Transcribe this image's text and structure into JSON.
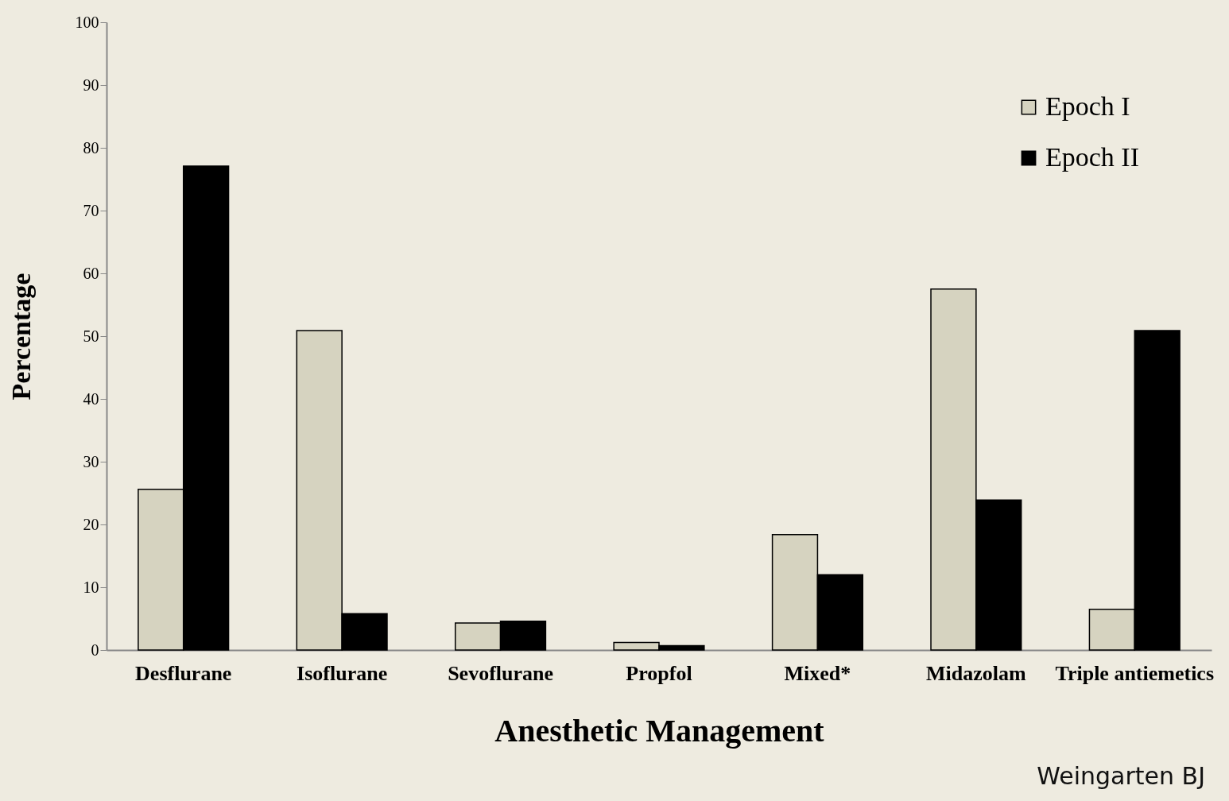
{
  "chart_data": {
    "type": "bar",
    "xlabel": "Anesthetic Management",
    "ylabel": "Percentage",
    "categories": [
      "Desflurane",
      "Isoflurane",
      "Sevoflurane",
      "Propfol",
      "Mixed*",
      "Midazolam",
      "Triple antiemetics"
    ],
    "series": [
      {
        "name": "Epoch I",
        "color": "#d6d3c0",
        "values": [
          25.6,
          50.9,
          4.3,
          1.2,
          18.4,
          57.5,
          6.5
        ]
      },
      {
        "name": "Epoch II",
        "color": "#000000",
        "values": [
          77.1,
          5.8,
          4.6,
          0.7,
          12.0,
          23.9,
          50.9
        ]
      }
    ],
    "ylim": [
      0,
      100
    ],
    "yticks": [
      0,
      10,
      20,
      30,
      40,
      50,
      60,
      70,
      80,
      90,
      100
    ],
    "legend": "top right",
    "annotations": [
      "Weingarten BJ"
    ]
  }
}
